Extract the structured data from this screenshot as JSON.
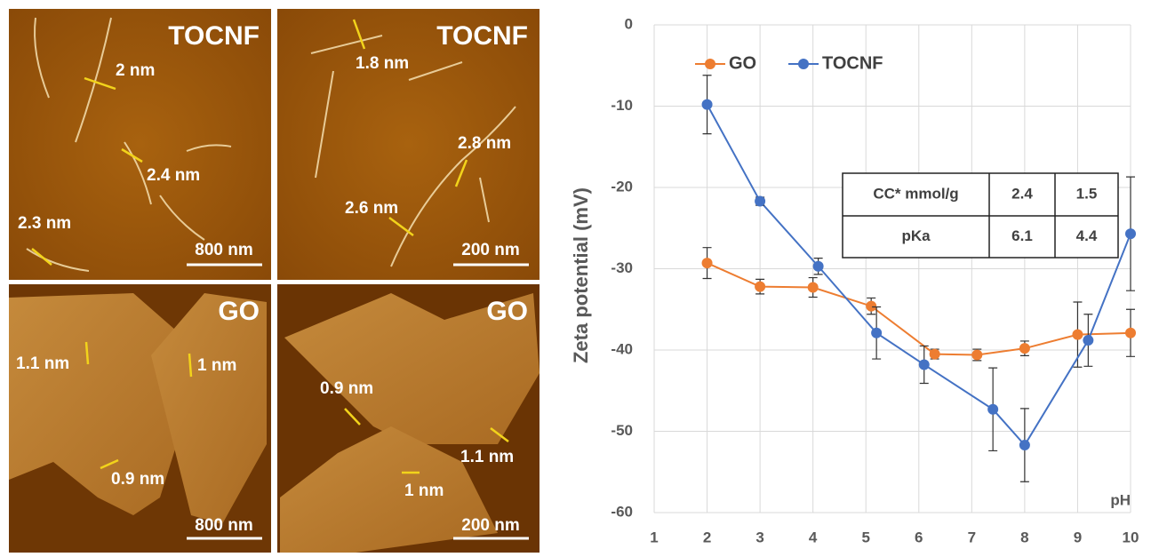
{
  "panels": [
    {
      "title": "TOCNF",
      "scale": "800 nm",
      "annotations": [
        "2 nm",
        "2.4 nm",
        "2.3 nm"
      ]
    },
    {
      "title": "TOCNF",
      "scale": "200 nm",
      "annotations": [
        "1.8 nm",
        "2.8 nm",
        "2.6 nm"
      ]
    },
    {
      "title": "GO",
      "scale": "800 nm",
      "annotations": [
        "1.1 nm",
        "1 nm",
        "0.9 nm"
      ]
    },
    {
      "title": "GO",
      "scale": "200 nm",
      "annotations": [
        "0.9 nm",
        "1.1 nm",
        "1 nm"
      ]
    }
  ],
  "chart_data": {
    "type": "line",
    "y_label": "Zeta potential (mV)",
    "x_label": "pH",
    "xlim": [
      1,
      10
    ],
    "xticks": [
      1,
      2,
      3,
      4,
      5,
      6,
      7,
      8,
      9,
      10
    ],
    "ylim": [
      -60,
      0
    ],
    "yticks": [
      0,
      -10,
      -20,
      -30,
      -40,
      -50,
      -60
    ],
    "grid": true,
    "legend": "top-left",
    "series": [
      {
        "name": "GO",
        "color": "#ed7d31",
        "x": [
          2,
          3,
          4,
          5.1,
          6.3,
          7.1,
          8,
          9,
          10
        ],
        "values": [
          -29.3,
          -32.2,
          -32.3,
          -34.6,
          -40.5,
          -40.6,
          -39.8,
          -38.1,
          -37.9
        ],
        "errors": [
          1.9,
          0.9,
          1.2,
          1.0,
          0.6,
          0.7,
          0.9,
          4.0,
          2.9
        ]
      },
      {
        "name": "TOCNF",
        "color": "#4472c4",
        "x": [
          2,
          3,
          4.1,
          5.2,
          6.1,
          7.4,
          8,
          9.2,
          10
        ],
        "values": [
          -9.8,
          -21.7,
          -29.7,
          -37.9,
          -41.8,
          -47.3,
          -51.7,
          -38.8,
          -25.7
        ],
        "errors": [
          3.6,
          0.5,
          1.0,
          3.2,
          2.3,
          5.1,
          4.5,
          3.2,
          7.0
        ]
      }
    ],
    "table": {
      "rows": [
        [
          "CC* mmol/g",
          "2.4",
          "1.5"
        ],
        [
          "pKa",
          "6.1",
          "4.4"
        ]
      ]
    }
  }
}
